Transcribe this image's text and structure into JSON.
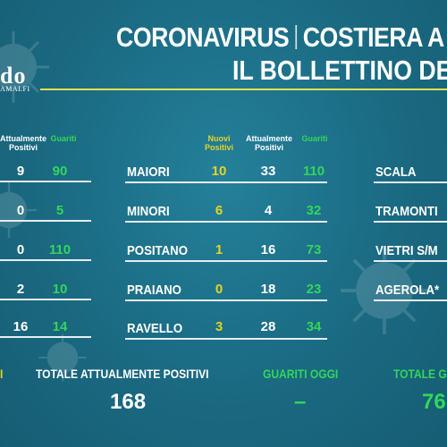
{
  "header": {
    "title_left": "CORONAVIRUS",
    "title_right": "COSTIERA A",
    "subtitle": "IL BOLLETTINO DE",
    "logo": "do",
    "logo_sub": "AMALFI"
  },
  "colors": {
    "background": "#1d6e86",
    "yellow": "#e4d424",
    "green": "#33d65a",
    "rule_yellow": "#e4e14a"
  },
  "left_table": {
    "headers": {
      "attuali": "Attualmente Positivi",
      "guariti": "Guariti"
    },
    "rows": [
      {
        "attuali": "9",
        "guariti": "90"
      },
      {
        "attuali": "0",
        "guariti": "5"
      },
      {
        "attuali": "0",
        "guariti": "110"
      },
      {
        "attuali": "2",
        "guariti": "10"
      },
      {
        "attuali": "16",
        "guariti": "14"
      }
    ]
  },
  "center_table": {
    "headers": {
      "nuovi": "Nuovi Positivi",
      "attuali": "Attualmente Positivi",
      "guariti": "Guariti"
    },
    "rows": [
      {
        "name": "MAIORI",
        "nuovi": "10",
        "attuali": "33",
        "guariti": "110"
      },
      {
        "name": "MINORI",
        "nuovi": "6",
        "attuali": "4",
        "guariti": "32"
      },
      {
        "name": "POSITANO",
        "nuovi": "1",
        "attuali": "16",
        "guariti": "73"
      },
      {
        "name": "PRAIANO",
        "nuovi": "0",
        "attuali": "18",
        "guariti": "23"
      },
      {
        "name": "RAVELLO",
        "nuovi": "3",
        "attuali": "28",
        "guariti": "34"
      }
    ]
  },
  "right_table": {
    "rows": [
      {
        "name": "SCALA"
      },
      {
        "name": "TRAMONTI"
      },
      {
        "name": "VIETRI S/M"
      },
      {
        "name": "AGEROLA*"
      }
    ]
  },
  "footer": {
    "left_fragment": "I",
    "totale_attuali_label": "TOTALE ATTUALMENTE POSITIVI",
    "totale_attuali_value": "168",
    "guariti_oggi_label": "GUARITI OGGI",
    "guariti_oggi_value": "–",
    "totale_guariti_label": "TOTALE G",
    "totale_guariti_value": "76"
  }
}
